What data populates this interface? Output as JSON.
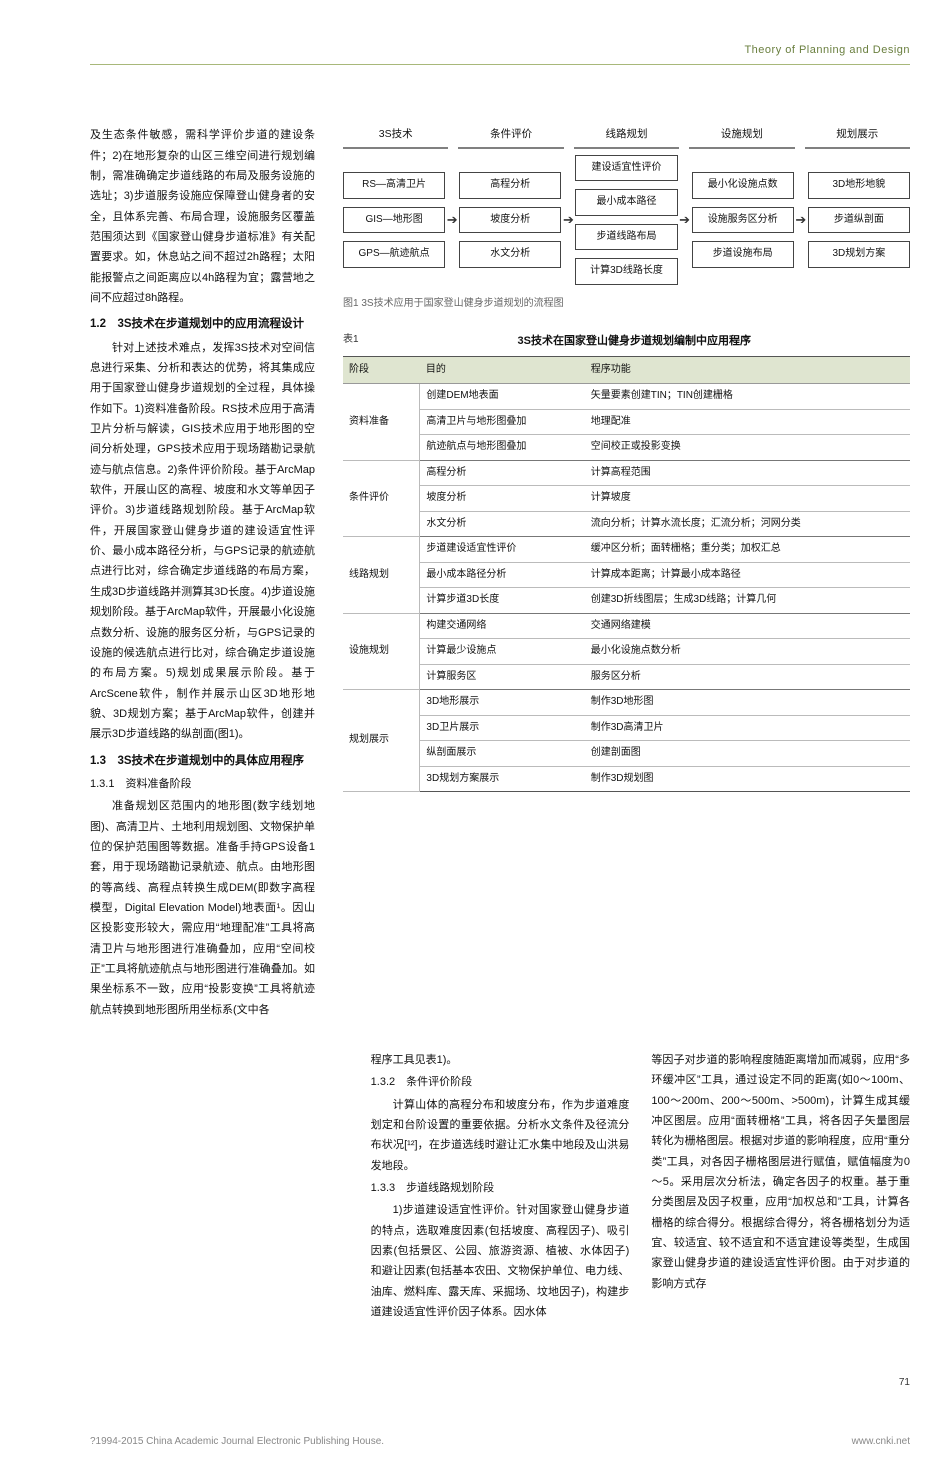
{
  "header": {
    "title": "Theory of Planning and Design"
  },
  "flowchart": {
    "header": [
      "3S技术",
      "条件评价",
      "线路规划",
      "设施规划",
      "规划展示"
    ],
    "cols": [
      [
        "RS—高清卫片",
        "GIS—地形图",
        "GPS—航迹航点"
      ],
      [
        "高程分析",
        "坡度分析",
        "水文分析"
      ],
      [
        "建设适宜性评价",
        "最小成本路径",
        "步道线路布局",
        "计算3D线路长度"
      ],
      [
        "最小化设施点数",
        "设施服务区分析",
        "步道设施布局"
      ],
      [
        "3D地形地貌",
        "步道纵剖面",
        "3D规划方案"
      ]
    ],
    "caption": "图1  3S技术应用于国家登山健身步道规划的流程图"
  },
  "table": {
    "pre": "表1",
    "caption": "3S技术在国家登山健身步道规划编制中应用程序",
    "columns": [
      "阶段",
      "目的",
      "程序功能"
    ],
    "groups": [
      {
        "stage": "资料准备",
        "rows": [
          [
            "创建DEM地表面",
            "矢量要素创建TIN；TIN创建栅格"
          ],
          [
            "高清卫片与地形图叠加",
            "地理配准"
          ],
          [
            "航迹航点与地形图叠加",
            "空间校正或投影变换"
          ]
        ]
      },
      {
        "stage": "条件评价",
        "rows": [
          [
            "高程分析",
            "计算高程范围"
          ],
          [
            "坡度分析",
            "计算坡度"
          ],
          [
            "水文分析",
            "流向分析；计算水流长度；汇流分析；河网分类"
          ]
        ]
      },
      {
        "stage": "线路规划",
        "rows": [
          [
            "步道建设适宜性评价",
            "缓冲区分析；面转栅格；重分类；加权汇总"
          ],
          [
            "最小成本路径分析",
            "计算成本距离；计算最小成本路径"
          ],
          [
            "计算步道3D长度",
            "创建3D折线图层；生成3D线路；计算几何"
          ]
        ]
      },
      {
        "stage": "设施规划",
        "rows": [
          [
            "构建交通网络",
            "交通网络建模"
          ],
          [
            "计算最少设施点",
            "最小化设施点数分析"
          ],
          [
            "计算服务区",
            "服务区分析"
          ]
        ]
      },
      {
        "stage": "规划展示",
        "rows": [
          [
            "3D地形展示",
            "制作3D地形图"
          ],
          [
            "3D卫片展示",
            "制作3D高清卫片"
          ],
          [
            "纵剖面展示",
            "创建剖面图"
          ],
          [
            "3D规划方案展示",
            "制作3D规划图"
          ]
        ]
      }
    ]
  },
  "left_text": {
    "p1": "及生态条件敏感，需科学评价步道的建设条件；2)在地形复杂的山区三维空间进行规划编制，需准确确定步道线路的布局及服务设施的选址；3)步道服务设施应保障登山健身者的安全，且体系完善、布局合理，设施服务区覆盖范围须达到《国家登山健身步道标准》有关配置要求。如，休息站之间不超过2h路程；太阳能报警点之间距离应以4h路程为宜；露营地之间不应超过8h路程。",
    "h12": "1.2　3S技术在步道规划中的应用流程设计",
    "p12": "针对上述技术难点，发挥3S技术对空间信息进行采集、分析和表达的优势，将其集成应用于国家登山健身步道规划的全过程，具体操作如下。1)资料准备阶段。RS技术应用于高清卫片分析与解读，GIS技术应用于地形图的空间分析处理，GPS技术应用于现场踏勘记录航迹与航点信息。2)条件评价阶段。基于ArcMap软件，开展山区的高程、坡度和水文等单因子评价。3)步道线路规划阶段。基于ArcMap软件，开展国家登山健身步道的建设适宜性评价、最小成本路径分析，与GPS记录的航迹航点进行比对，综合确定步道线路的布局方案，生成3D步道线路并测算其3D长度。4)步道设施规划阶段。基于ArcMap软件，开展最小化设施点数分析、设施的服务区分析，与GPS记录的设施的候选航点进行比对，综合确定步道设施的布局方案。5)规划成果展示阶段。基于ArcScene软件，制作并展示山区3D地形地貌、3D规划方案；基于ArcMap软件，创建并展示3D步道线路的纵剖面(图1)。",
    "h13": "1.3　3S技术在步道规划中的具体应用程序",
    "h131": "1.3.1　资料准备阶段",
    "p131": "准备规划区范围内的地形图(数字线划地图)、高清卫片、土地利用规划图、文物保护单位的保护范围图等数据。准备手持GPS设备1套，用于现场踏勘记录航迹、航点。由地形图的等高线、高程点转换生成DEM(即数字高程模型，Digital Elevation Model)地表面¹。因山区投影变形较大，需应用“地理配准”工具将高清卫片与地形图进行准确叠加，应用“空间校正”工具将航迹航点与地形图进行准确叠加。如果坐标系不一致，应用“投影变换”工具将航迹航点转换到地形图所用坐标系(文中各"
  },
  "lower": {
    "c1": {
      "p1": "程序工具见表1)。",
      "h132": "1.3.2　条件评价阶段",
      "p132": "计算山体的高程分布和坡度分布，作为步道难度划定和台阶设置的重要依据。分析水文条件及径流分布状况[¹²]，在步道选线时避让汇水集中地段及山洪易发地段。",
      "h133": "1.3.3　步道线路规划阶段",
      "p133": "1)步道建设适宜性评价。针对国家登山健身步道的特点，选取难度因素(包括坡度、高程因子)、吸引因素(包括景区、公园、旅游资源、植被、水体因子)和避让因素(包括基本农田、文物保护单位、电力线、油库、燃料库、露天库、采掘场、坟地因子)，构建步道建设适宜性评价因子体系。因水体"
    },
    "c2": {
      "p": "等因子对步道的影响程度随距离增加而减弱，应用“多环缓冲区”工具，通过设定不同的距离(如0～100m、100～200m、200～500m、>500m)，计算生成其缓冲区图层。应用“面转栅格”工具，将各因子矢量图层转化为栅格图层。根据对步道的影响程度，应用“重分类”工具，对各因子栅格图层进行赋值，赋值幅度为0～5。采用层次分析法，确定各因子的权重。基于重分类图层及因子权重，应用“加权总和”工具，计算各栅格的综合得分。根据综合得分，将各栅格划分为适宜、较适宜、较不适宜和不适宜建设等类型，生成国家登山健身步道的建设适宜性评价图。由于对步道的影响方式存"
    }
  },
  "pagenum": "71",
  "footer": {
    "left": "?1994-2015 China Academic Journal Electronic Publishing House.",
    "right": "www.cnki.net"
  }
}
